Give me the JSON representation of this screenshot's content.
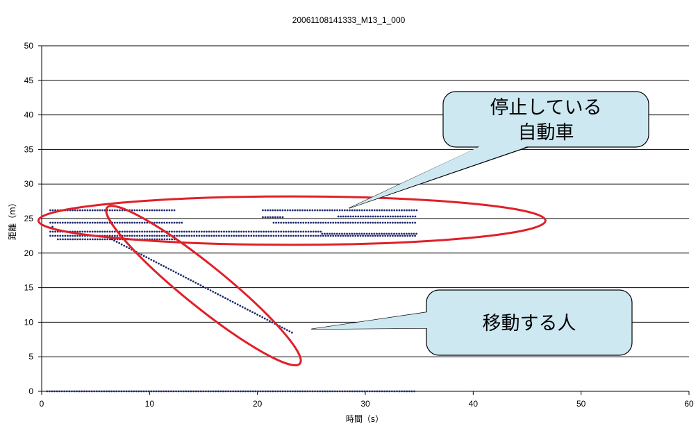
{
  "chart_data": {
    "type": "scatter",
    "title": "20061108141333_M13_1_000",
    "xlabel": "時間（s）",
    "ylabel": "距離（m）",
    "xlim": [
      0,
      60
    ],
    "ylim": [
      0,
      50
    ],
    "xticks": [
      "0",
      "10",
      "20",
      "30",
      "40",
      "50",
      "60"
    ],
    "yticks": [
      "0",
      "5",
      "10",
      "15",
      "20",
      "25",
      "30",
      "35",
      "40",
      "45",
      "50"
    ],
    "grid": "horizontal",
    "marker_color": "#1f2a6e",
    "series": [
      {
        "points_generator": "rows",
        "rows": [
          {
            "y": 26.2,
            "x_start": 0.8,
            "x_end": 12.3
          },
          {
            "y": 26.2,
            "x_start": 20.5,
            "x_end": 34.8
          },
          {
            "y": 24.4,
            "x_start": 0.8,
            "x_end": 13.0
          },
          {
            "y": 24.4,
            "x_start": 21.5,
            "x_end": 34.8
          },
          {
            "y": 25.3,
            "x_start": 27.5,
            "x_end": 34.8
          },
          {
            "y": 25.2,
            "x_start": 20.5,
            "x_end": 22.5
          },
          {
            "y": 23.8,
            "x_start": 1.0,
            "x_end": 1.2
          },
          {
            "y": 23.1,
            "x_start": 0.8,
            "x_end": 26.0
          },
          {
            "y": 22.8,
            "x_start": 26.0,
            "x_end": 34.8
          },
          {
            "y": 22.5,
            "x_start": 0.8,
            "x_end": 34.8
          },
          {
            "y": 22.0,
            "x_start": 1.5,
            "x_end": 12.5
          },
          {
            "y": 0.0,
            "x_start": 0.5,
            "x_end": 34.7
          }
        ],
        "diagonal": {
          "x_start": 6.5,
          "y_start": 22.0,
          "x_end": 23.2,
          "y_end": 8.5
        }
      }
    ],
    "annotations": [
      {
        "text_lines": [
          "停止している",
          "自動車"
        ],
        "target_x": 28.5,
        "target_y": 26.5,
        "ellipse": {
          "cx": 23.2,
          "cy": 24.7,
          "rx": 23.5,
          "ry": 3.5,
          "angle": 0
        }
      },
      {
        "text_lines": [
          "移動する人"
        ],
        "target_x": 25.0,
        "target_y": 9.0,
        "ellipse": {
          "cx": 15.0,
          "cy": 15.3,
          "rx": 11.5,
          "ry": 3.0,
          "angle": 39
        }
      }
    ]
  }
}
